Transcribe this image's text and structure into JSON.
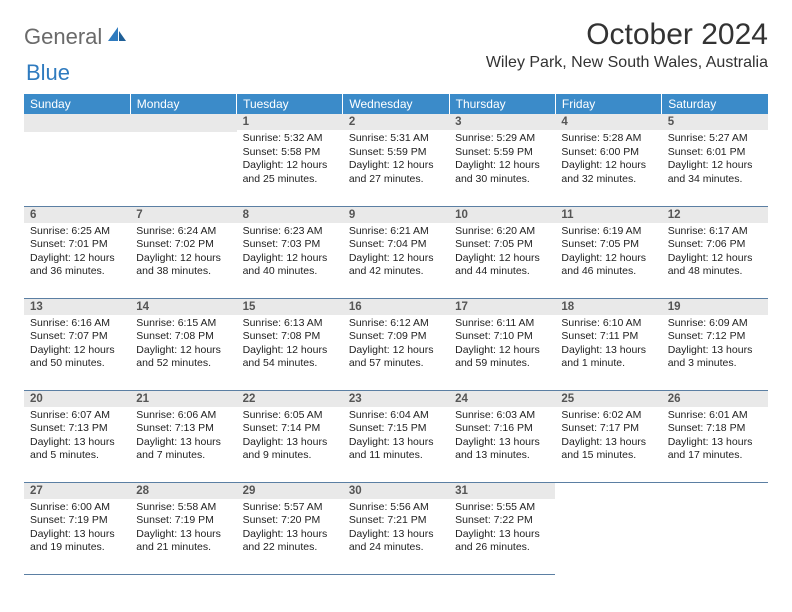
{
  "logo": {
    "word1": "General",
    "word2": "Blue"
  },
  "title": "October 2024",
  "location": "Wiley Park, New South Wales, Australia",
  "colors": {
    "header_bg": "#3b8bc9",
    "header_text": "#ffffff",
    "daynum_bg": "#e9e9e9",
    "daynum_text": "#555555",
    "row_border": "#5b7fa3",
    "logo_gray": "#6a6a6a",
    "logo_blue": "#2f7bbf"
  },
  "day_headers": [
    "Sunday",
    "Monday",
    "Tuesday",
    "Wednesday",
    "Thursday",
    "Friday",
    "Saturday"
  ],
  "weeks": [
    [
      {
        "n": "",
        "sunrise": "",
        "sunset": "",
        "daylight": ""
      },
      {
        "n": "",
        "sunrise": "",
        "sunset": "",
        "daylight": ""
      },
      {
        "n": "1",
        "sunrise": "Sunrise: 5:32 AM",
        "sunset": "Sunset: 5:58 PM",
        "daylight": "Daylight: 12 hours and 25 minutes."
      },
      {
        "n": "2",
        "sunrise": "Sunrise: 5:31 AM",
        "sunset": "Sunset: 5:59 PM",
        "daylight": "Daylight: 12 hours and 27 minutes."
      },
      {
        "n": "3",
        "sunrise": "Sunrise: 5:29 AM",
        "sunset": "Sunset: 5:59 PM",
        "daylight": "Daylight: 12 hours and 30 minutes."
      },
      {
        "n": "4",
        "sunrise": "Sunrise: 5:28 AM",
        "sunset": "Sunset: 6:00 PM",
        "daylight": "Daylight: 12 hours and 32 minutes."
      },
      {
        "n": "5",
        "sunrise": "Sunrise: 5:27 AM",
        "sunset": "Sunset: 6:01 PM",
        "daylight": "Daylight: 12 hours and 34 minutes."
      }
    ],
    [
      {
        "n": "6",
        "sunrise": "Sunrise: 6:25 AM",
        "sunset": "Sunset: 7:01 PM",
        "daylight": "Daylight: 12 hours and 36 minutes."
      },
      {
        "n": "7",
        "sunrise": "Sunrise: 6:24 AM",
        "sunset": "Sunset: 7:02 PM",
        "daylight": "Daylight: 12 hours and 38 minutes."
      },
      {
        "n": "8",
        "sunrise": "Sunrise: 6:23 AM",
        "sunset": "Sunset: 7:03 PM",
        "daylight": "Daylight: 12 hours and 40 minutes."
      },
      {
        "n": "9",
        "sunrise": "Sunrise: 6:21 AM",
        "sunset": "Sunset: 7:04 PM",
        "daylight": "Daylight: 12 hours and 42 minutes."
      },
      {
        "n": "10",
        "sunrise": "Sunrise: 6:20 AM",
        "sunset": "Sunset: 7:05 PM",
        "daylight": "Daylight: 12 hours and 44 minutes."
      },
      {
        "n": "11",
        "sunrise": "Sunrise: 6:19 AM",
        "sunset": "Sunset: 7:05 PM",
        "daylight": "Daylight: 12 hours and 46 minutes."
      },
      {
        "n": "12",
        "sunrise": "Sunrise: 6:17 AM",
        "sunset": "Sunset: 7:06 PM",
        "daylight": "Daylight: 12 hours and 48 minutes."
      }
    ],
    [
      {
        "n": "13",
        "sunrise": "Sunrise: 6:16 AM",
        "sunset": "Sunset: 7:07 PM",
        "daylight": "Daylight: 12 hours and 50 minutes."
      },
      {
        "n": "14",
        "sunrise": "Sunrise: 6:15 AM",
        "sunset": "Sunset: 7:08 PM",
        "daylight": "Daylight: 12 hours and 52 minutes."
      },
      {
        "n": "15",
        "sunrise": "Sunrise: 6:13 AM",
        "sunset": "Sunset: 7:08 PM",
        "daylight": "Daylight: 12 hours and 54 minutes."
      },
      {
        "n": "16",
        "sunrise": "Sunrise: 6:12 AM",
        "sunset": "Sunset: 7:09 PM",
        "daylight": "Daylight: 12 hours and 57 minutes."
      },
      {
        "n": "17",
        "sunrise": "Sunrise: 6:11 AM",
        "sunset": "Sunset: 7:10 PM",
        "daylight": "Daylight: 12 hours and 59 minutes."
      },
      {
        "n": "18",
        "sunrise": "Sunrise: 6:10 AM",
        "sunset": "Sunset: 7:11 PM",
        "daylight": "Daylight: 13 hours and 1 minute."
      },
      {
        "n": "19",
        "sunrise": "Sunrise: 6:09 AM",
        "sunset": "Sunset: 7:12 PM",
        "daylight": "Daylight: 13 hours and 3 minutes."
      }
    ],
    [
      {
        "n": "20",
        "sunrise": "Sunrise: 6:07 AM",
        "sunset": "Sunset: 7:13 PM",
        "daylight": "Daylight: 13 hours and 5 minutes."
      },
      {
        "n": "21",
        "sunrise": "Sunrise: 6:06 AM",
        "sunset": "Sunset: 7:13 PM",
        "daylight": "Daylight: 13 hours and 7 minutes."
      },
      {
        "n": "22",
        "sunrise": "Sunrise: 6:05 AM",
        "sunset": "Sunset: 7:14 PM",
        "daylight": "Daylight: 13 hours and 9 minutes."
      },
      {
        "n": "23",
        "sunrise": "Sunrise: 6:04 AM",
        "sunset": "Sunset: 7:15 PM",
        "daylight": "Daylight: 13 hours and 11 minutes."
      },
      {
        "n": "24",
        "sunrise": "Sunrise: 6:03 AM",
        "sunset": "Sunset: 7:16 PM",
        "daylight": "Daylight: 13 hours and 13 minutes."
      },
      {
        "n": "25",
        "sunrise": "Sunrise: 6:02 AM",
        "sunset": "Sunset: 7:17 PM",
        "daylight": "Daylight: 13 hours and 15 minutes."
      },
      {
        "n": "26",
        "sunrise": "Sunrise: 6:01 AM",
        "sunset": "Sunset: 7:18 PM",
        "daylight": "Daylight: 13 hours and 17 minutes."
      }
    ],
    [
      {
        "n": "27",
        "sunrise": "Sunrise: 6:00 AM",
        "sunset": "Sunset: 7:19 PM",
        "daylight": "Daylight: 13 hours and 19 minutes."
      },
      {
        "n": "28",
        "sunrise": "Sunrise: 5:58 AM",
        "sunset": "Sunset: 7:19 PM",
        "daylight": "Daylight: 13 hours and 21 minutes."
      },
      {
        "n": "29",
        "sunrise": "Sunrise: 5:57 AM",
        "sunset": "Sunset: 7:20 PM",
        "daylight": "Daylight: 13 hours and 22 minutes."
      },
      {
        "n": "30",
        "sunrise": "Sunrise: 5:56 AM",
        "sunset": "Sunset: 7:21 PM",
        "daylight": "Daylight: 13 hours and 24 minutes."
      },
      {
        "n": "31",
        "sunrise": "Sunrise: 5:55 AM",
        "sunset": "Sunset: 7:22 PM",
        "daylight": "Daylight: 13 hours and 26 minutes."
      },
      {
        "n": "",
        "sunrise": "",
        "sunset": "",
        "daylight": ""
      },
      {
        "n": "",
        "sunrise": "",
        "sunset": "",
        "daylight": ""
      }
    ]
  ]
}
